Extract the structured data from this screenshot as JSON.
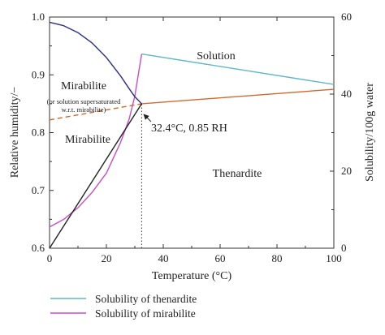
{
  "chart_data": {
    "type": "line",
    "xlabel": "Temperature (°C)",
    "ylabel": "Relative humidity/−",
    "y2label": "Solubility/100g water",
    "xlim": [
      0,
      100
    ],
    "ylim": [
      0.6,
      1.0
    ],
    "y2lim": [
      0,
      60
    ],
    "x_ticks": [
      0,
      20,
      40,
      60,
      80,
      100
    ],
    "y_ticks": [
      0.6,
      0.7,
      0.8,
      0.9,
      1.0
    ],
    "y2_ticks": [
      0,
      20,
      40,
      60
    ],
    "x_tick_labels": [
      "0",
      "20",
      "40",
      "60",
      "80",
      "100"
    ],
    "y_tick_labels": [
      "0.6",
      "0.7",
      "0.8",
      "0.9",
      "1.0"
    ],
    "y2_tick_labels": [
      "0",
      "20",
      "40",
      "60"
    ],
    "colors": {
      "thenardite_solubility": "#5fb8c6",
      "mirabilite_solubility": "#c64fc6",
      "deliquescence_thenardite": "#d2692a",
      "deliquescence_mirabilite": "#2b2f8c",
      "mirabilite_thenardite_boundary": "#222222"
    },
    "series": [
      {
        "name": "Solubility of thenardite",
        "axis": "right",
        "x": [
          32.4,
          100
        ],
        "y": [
          50.4,
          42.5
        ]
      },
      {
        "name": "Solubility of mirabilite",
        "axis": "right",
        "x": [
          0,
          5,
          10,
          15,
          20,
          25,
          28,
          30,
          32.4
        ],
        "y": [
          5.5,
          7.5,
          10.5,
          14.5,
          19.5,
          27.5,
          33.5,
          39.5,
          50.4
        ]
      },
      {
        "axis": "left",
        "style": "solid",
        "x": [
          32.4,
          100
        ],
        "y": [
          0.85,
          0.875
        ]
      },
      {
        "axis": "left",
        "style": "dashed",
        "x": [
          0,
          32.4
        ],
        "y": [
          0.822,
          0.85
        ]
      },
      {
        "axis": "left",
        "x": [
          0,
          5,
          10,
          15,
          20,
          25,
          28,
          30,
          32.4
        ],
        "y": [
          0.991,
          0.985,
          0.973,
          0.955,
          0.93,
          0.898,
          0.876,
          0.862,
          0.85
        ]
      },
      {
        "axis": "left",
        "x": [
          0,
          32.4
        ],
        "y": [
          0.6,
          0.85
        ]
      }
    ],
    "reference_lines": [
      {
        "orientation": "vertical",
        "x": 32.4,
        "y_range": [
          0.6,
          0.85
        ],
        "style": "dotted"
      }
    ],
    "annotations": [
      {
        "text": "Solution",
        "x": 65,
        "y": 0.96
      },
      {
        "text": "Mirabilite",
        "x": 12,
        "y": 0.9
      },
      {
        "text": "(or solution supersaturated",
        "x": 12,
        "y": 0.873
      },
      {
        "text": "w.r.t. mirabilite)",
        "x": 12,
        "y": 0.862
      },
      {
        "text": "Mirabilite",
        "x": 12,
        "y": 0.782
      },
      {
        "text": "Thenardite",
        "x": 67,
        "y": 0.73
      },
      {
        "text": "32.4°C, 0.85 RH",
        "x": 37,
        "y": 0.815
      }
    ],
    "grid": false,
    "legend_placement": "bottom"
  }
}
